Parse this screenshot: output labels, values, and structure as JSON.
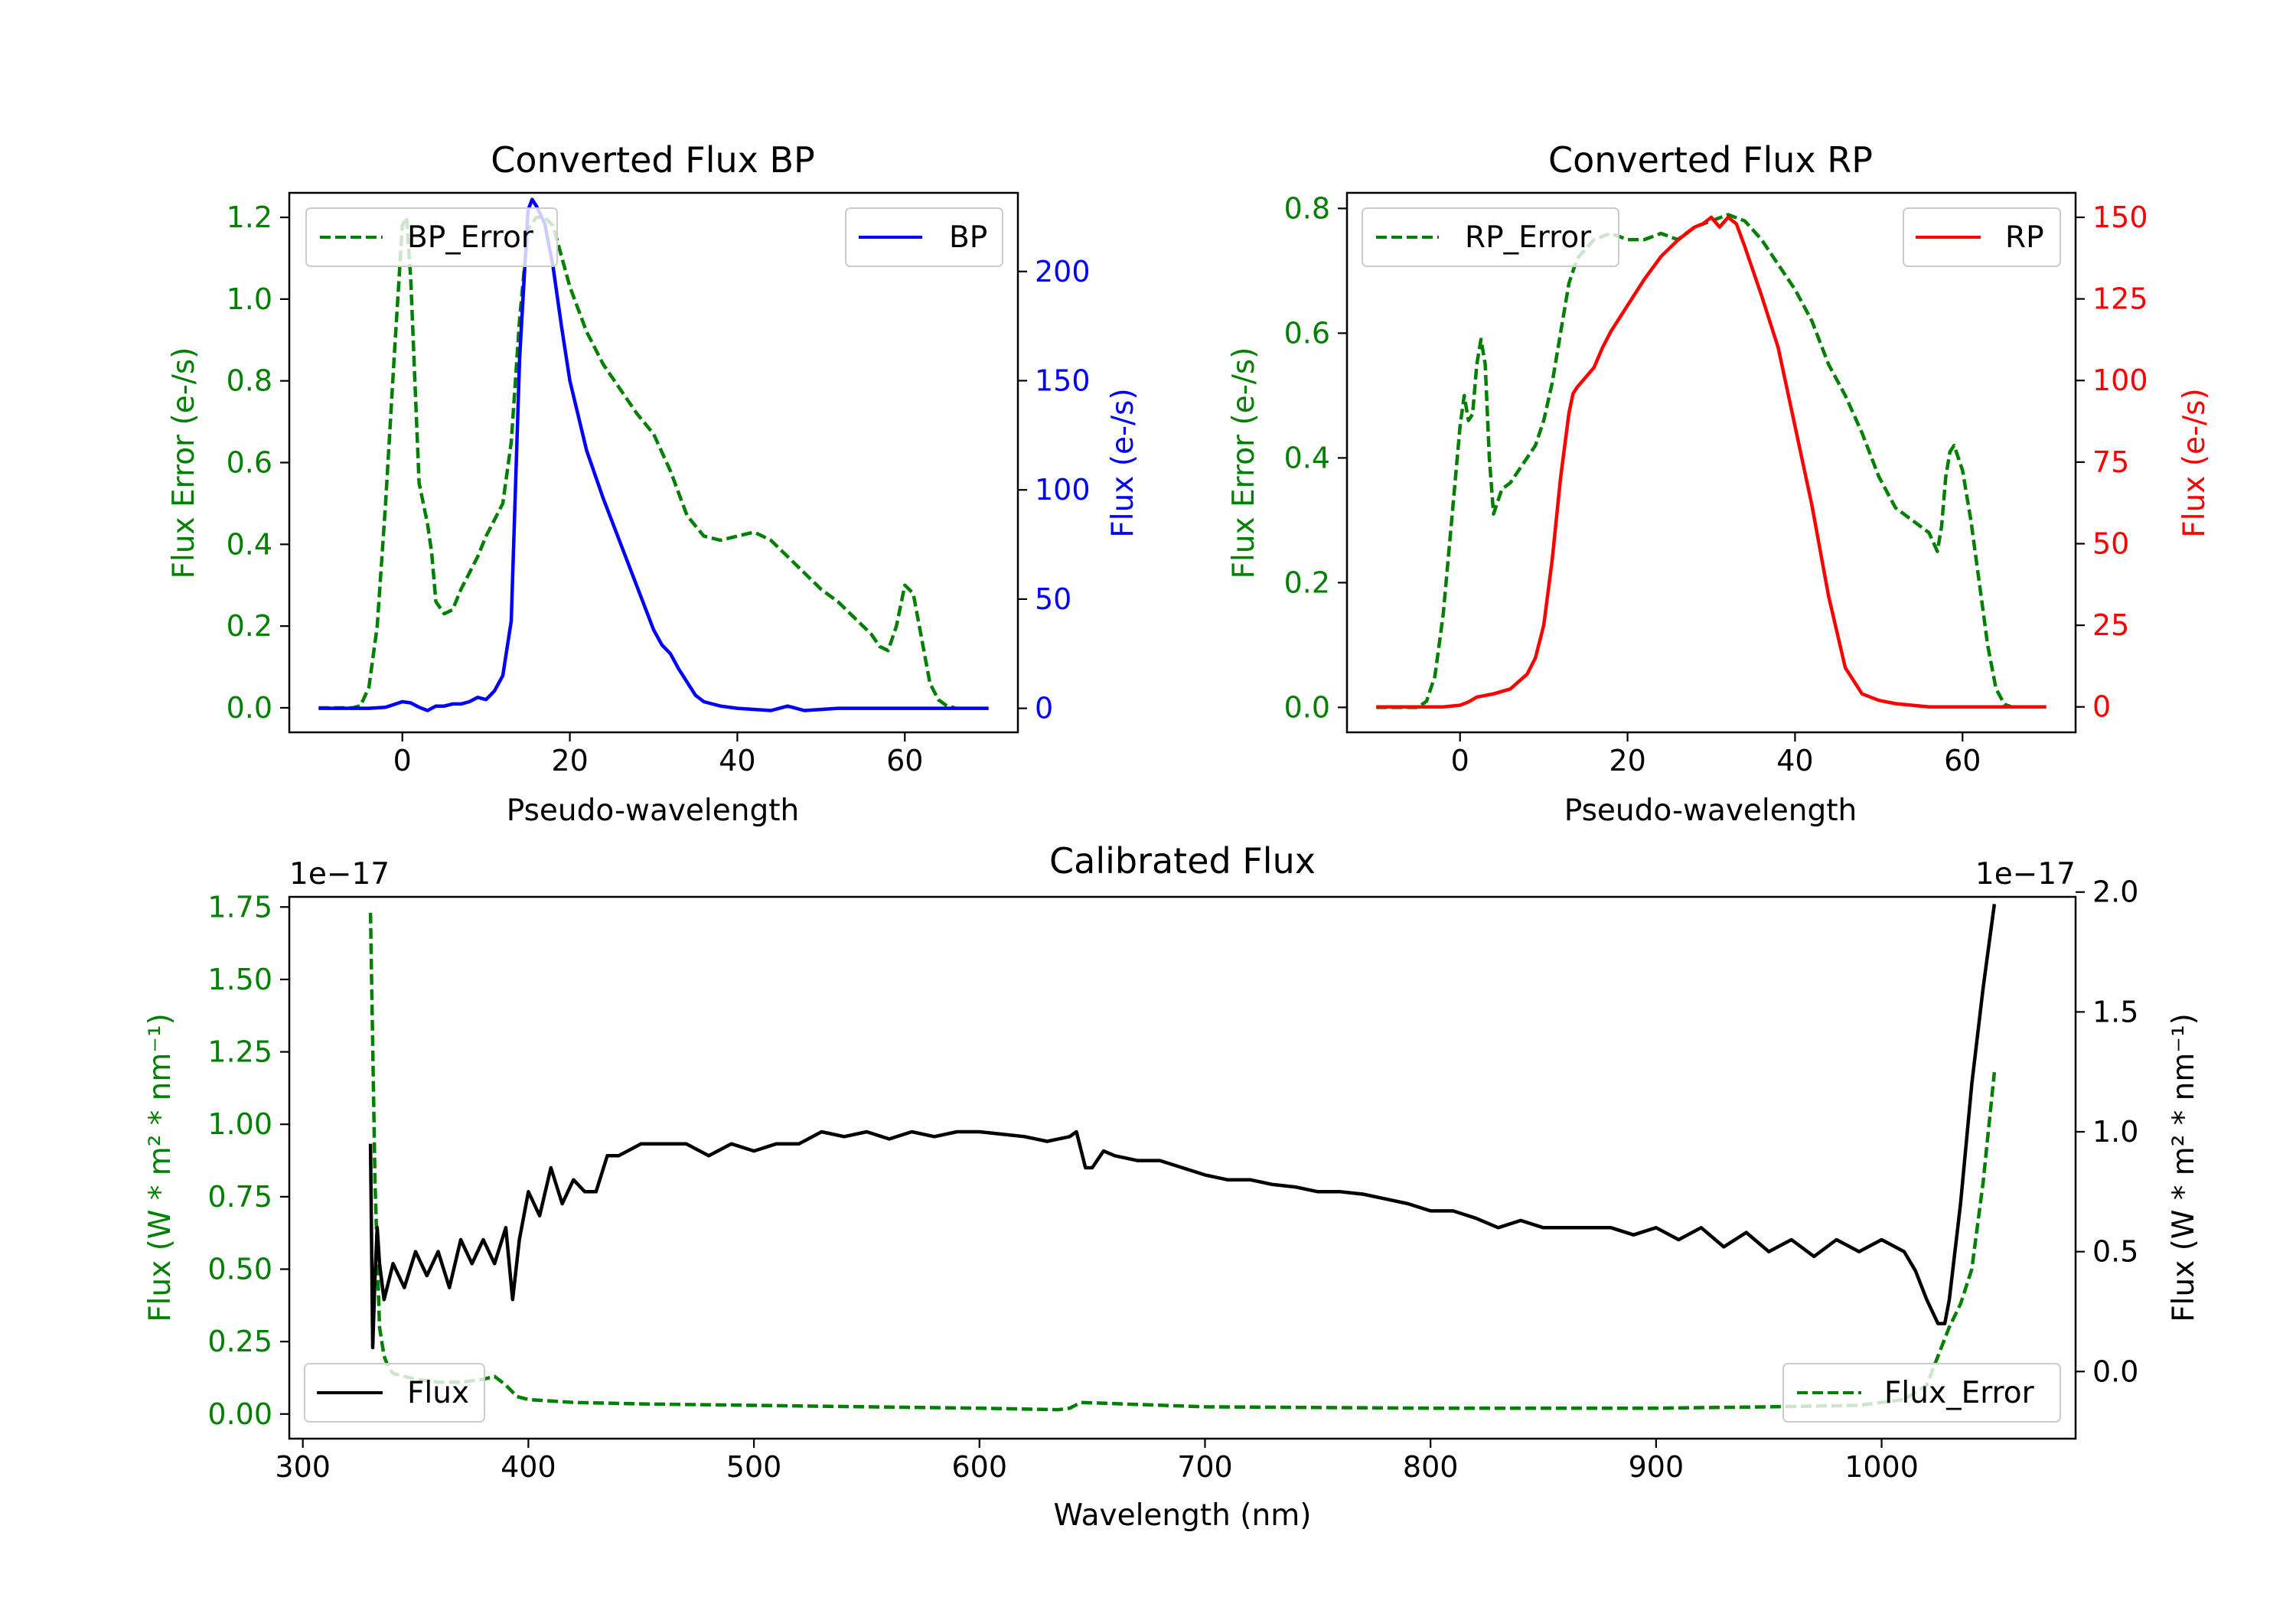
{
  "colors": {
    "bp": "#0000ff",
    "rp": "#ff0000",
    "error": "#008000",
    "flux": "#000000"
  },
  "chart_data": [
    {
      "id": "bp",
      "type": "line",
      "title": "Converted Flux BP",
      "xlabel": "Pseudo-wavelength",
      "ylabel_left": "Flux Error (e-/s)",
      "ylabel_right": "Flux (e-/s)",
      "xlim": [
        -13.5,
        73.5
      ],
      "ylim_left": [
        -0.06,
        1.26
      ],
      "ylim_right": [
        -11,
        236
      ],
      "xticks": [
        0,
        20,
        40,
        60
      ],
      "xtick_labels": [
        "0",
        "20",
        "40",
        "60"
      ],
      "yticks_left": [
        0,
        0.2,
        0.4,
        0.6,
        0.8,
        1.0,
        1.2
      ],
      "ytick_labels_left": [
        "0.0",
        "0.2",
        "0.4",
        "0.6",
        "0.8",
        "1.0",
        "1.2"
      ],
      "yticks_right": [
        0,
        50,
        100,
        150,
        200
      ],
      "ytick_labels_right": [
        "0",
        "50",
        "100",
        "150",
        "200"
      ],
      "legend_left": "BP_Error",
      "legend_right": "BP",
      "series": [
        {
          "name": "BP_Error",
          "axis": "left",
          "style": "dashed",
          "color_key": "error",
          "x": [
            -10,
            -6,
            -5,
            -4,
            -3,
            -2,
            -1,
            0,
            0.5,
            1,
            1.5,
            2,
            3,
            3.5,
            4,
            5,
            6,
            7,
            8,
            9,
            10,
            11,
            12,
            13,
            14,
            15,
            16,
            17,
            18,
            20,
            22,
            24,
            26,
            28,
            30,
            32,
            34,
            36,
            38,
            40,
            42,
            44,
            46,
            48,
            50,
            52,
            54,
            56,
            57,
            58,
            59,
            60,
            61,
            62,
            63,
            64,
            65,
            66
          ],
          "y": [
            0,
            0,
            0.005,
            0.05,
            0.2,
            0.5,
            0.85,
            1.18,
            1.2,
            1.05,
            0.8,
            0.55,
            0.45,
            0.38,
            0.26,
            0.23,
            0.24,
            0.29,
            0.33,
            0.37,
            0.42,
            0.46,
            0.5,
            0.65,
            0.95,
            1.17,
            1.2,
            1.2,
            1.18,
            1.03,
            0.92,
            0.84,
            0.78,
            0.72,
            0.67,
            0.58,
            0.47,
            0.42,
            0.41,
            0.42,
            0.43,
            0.41,
            0.37,
            0.33,
            0.29,
            0.26,
            0.22,
            0.18,
            0.15,
            0.14,
            0.2,
            0.3,
            0.28,
            0.17,
            0.06,
            0.02,
            0.005,
            0
          ]
        },
        {
          "name": "BP",
          "axis": "right",
          "style": "solid",
          "color_key": "bp",
          "x": [
            -10,
            -4,
            -2,
            0,
            1,
            2,
            3,
            4,
            5,
            6,
            7,
            8,
            9,
            10,
            11,
            12,
            13,
            14,
            15,
            15.5,
            16,
            17,
            18,
            19,
            20,
            22,
            24,
            26,
            28,
            30,
            31,
            32,
            33,
            34,
            35,
            36,
            38,
            40,
            44,
            46,
            48,
            52,
            56,
            60,
            65,
            70
          ],
          "y": [
            0,
            0,
            0.5,
            3,
            2.5,
            0.5,
            -1,
            1,
            1,
            2,
            2,
            3,
            5,
            4,
            8,
            15,
            40,
            160,
            228,
            233,
            230,
            222,
            202,
            175,
            150,
            118,
            96,
            76,
            56,
            36,
            29,
            25,
            18,
            12,
            6,
            3,
            1,
            0,
            -1,
            1,
            -1,
            0,
            0,
            0,
            0,
            0
          ]
        }
      ]
    },
    {
      "id": "rp",
      "type": "line",
      "title": "Converted Flux RP",
      "xlabel": "Pseudo-wavelength",
      "ylabel_left": "Flux Error (e-/s)",
      "ylabel_right": "Flux (e-/s)",
      "xlim": [
        -13.5,
        73.5
      ],
      "ylim_left": [
        -0.04,
        0.825
      ],
      "ylim_right": [
        -7.8,
        157.5
      ],
      "xticks": [
        0,
        20,
        40,
        60
      ],
      "xtick_labels": [
        "0",
        "20",
        "40",
        "60"
      ],
      "yticks_left": [
        0,
        0.2,
        0.4,
        0.6,
        0.8
      ],
      "ytick_labels_left": [
        "0.0",
        "0.2",
        "0.4",
        "0.6",
        "0.8"
      ],
      "yticks_right": [
        0,
        25,
        50,
        75,
        100,
        125,
        150
      ],
      "ytick_labels_right": [
        "0",
        "25",
        "50",
        "75",
        "100",
        "125",
        "150"
      ],
      "legend_left": "RP_Error",
      "legend_right": "RP",
      "series": [
        {
          "name": "RP_Error",
          "axis": "left",
          "style": "dashed",
          "color_key": "error",
          "x": [
            -10,
            -5,
            -4,
            -3,
            -2,
            -1,
            0,
            0.5,
            1,
            1.5,
            2,
            2.5,
            3,
            3.5,
            4,
            5,
            6,
            7,
            8,
            9,
            10,
            11,
            12,
            13,
            14,
            16,
            18,
            20,
            22,
            24,
            26,
            28,
            30,
            32,
            34,
            36,
            38,
            40,
            42,
            44,
            46,
            48,
            50,
            52,
            54,
            56,
            57,
            57.5,
            58,
            58.5,
            59,
            60,
            61,
            62,
            63,
            64,
            65,
            66
          ],
          "y": [
            0,
            0,
            0.01,
            0.05,
            0.15,
            0.3,
            0.45,
            0.5,
            0.46,
            0.47,
            0.55,
            0.59,
            0.55,
            0.4,
            0.31,
            0.35,
            0.36,
            0.38,
            0.4,
            0.42,
            0.46,
            0.52,
            0.6,
            0.68,
            0.72,
            0.75,
            0.76,
            0.75,
            0.75,
            0.76,
            0.75,
            0.77,
            0.78,
            0.79,
            0.78,
            0.75,
            0.71,
            0.67,
            0.62,
            0.55,
            0.5,
            0.44,
            0.37,
            0.32,
            0.3,
            0.28,
            0.25,
            0.29,
            0.37,
            0.41,
            0.42,
            0.38,
            0.3,
            0.2,
            0.1,
            0.03,
            0.005,
            0
          ]
        },
        {
          "name": "RP",
          "axis": "right",
          "style": "solid",
          "color_key": "rp",
          "x": [
            -10,
            -2,
            0,
            1,
            2,
            4,
            6,
            8,
            9,
            10,
            11,
            12,
            13,
            13.5,
            14,
            15,
            16,
            17,
            18,
            20,
            22,
            24,
            26,
            28,
            29,
            30,
            31,
            32,
            33,
            34,
            36,
            38,
            40,
            42,
            44,
            46,
            48,
            50,
            52,
            54,
            56,
            58,
            60,
            65,
            70
          ],
          "y": [
            0,
            0,
            0.5,
            1.5,
            3,
            4,
            5.5,
            10,
            15,
            25,
            45,
            70,
            90,
            96,
            98,
            101,
            104,
            110,
            115,
            123,
            131,
            138,
            143,
            147,
            148,
            150,
            147,
            150,
            148,
            141,
            126,
            110,
            86,
            62,
            34,
            12,
            4,
            2,
            1,
            0.5,
            0,
            0,
            0,
            0,
            0
          ]
        }
      ]
    },
    {
      "id": "calibrated",
      "type": "line",
      "title": "Calibrated Flux",
      "xlabel": "Wavelength (nm)",
      "ylabel_left": "Flux (W * m² * nm⁻¹)",
      "ylabel_right": "Flux (W * m² * nm⁻¹)",
      "offset_left": "1e−17",
      "offset_right": "1e−17",
      "xlim": [
        294,
        1086
      ],
      "ylim_left": [
        -0.085,
        1.785
      ],
      "ylim_right": [
        -0.28,
        1.98
      ],
      "xticks": [
        300,
        400,
        500,
        600,
        700,
        800,
        900,
        1000
      ],
      "xtick_labels": [
        "300",
        "400",
        "500",
        "600",
        "700",
        "800",
        "900",
        "1000"
      ],
      "yticks_left": [
        0,
        0.25,
        0.5,
        0.75,
        1.0,
        1.25,
        1.5,
        1.75
      ],
      "ytick_labels_left": [
        "0.00",
        "0.25",
        "0.50",
        "0.75",
        "1.00",
        "1.25",
        "1.50",
        "1.75"
      ],
      "yticks_right": [
        0,
        0.5,
        1.0,
        1.5,
        2.0
      ],
      "ytick_labels_right": [
        "0.0",
        "0.5",
        "1.0",
        "1.5",
        "2.0"
      ],
      "legend_left": "Flux",
      "legend_right": "Flux_Error",
      "series": [
        {
          "name": "Flux_Error",
          "axis": "left",
          "style": "dashed",
          "color_key": "error",
          "x": [
            330,
            332,
            334,
            336,
            338,
            340,
            345,
            350,
            360,
            370,
            380,
            385,
            390,
            395,
            400,
            420,
            450,
            500,
            550,
            600,
            635,
            640,
            645,
            700,
            800,
            900,
            950,
            990,
            1010,
            1020,
            1030,
            1035,
            1040,
            1045,
            1050
          ],
          "y": [
            1.73,
            0.8,
            0.3,
            0.2,
            0.16,
            0.14,
            0.13,
            0.12,
            0.11,
            0.11,
            0.12,
            0.13,
            0.1,
            0.06,
            0.05,
            0.04,
            0.035,
            0.03,
            0.025,
            0.02,
            0.015,
            0.02,
            0.04,
            0.025,
            0.02,
            0.02,
            0.025,
            0.03,
            0.05,
            0.1,
            0.3,
            0.38,
            0.5,
            0.8,
            1.18
          ]
        },
        {
          "name": "Flux",
          "axis": "right",
          "style": "solid",
          "color_key": "flux",
          "x": [
            330,
            331,
            332,
            333,
            334,
            336,
            340,
            345,
            350,
            355,
            360,
            365,
            370,
            375,
            380,
            385,
            390,
            393,
            396,
            400,
            405,
            410,
            415,
            420,
            425,
            430,
            435,
            440,
            450,
            460,
            470,
            480,
            490,
            500,
            510,
            520,
            530,
            540,
            550,
            560,
            570,
            580,
            590,
            600,
            610,
            620,
            630,
            640,
            643,
            647,
            650,
            655,
            660,
            670,
            680,
            690,
            700,
            710,
            720,
            730,
            740,
            750,
            760,
            770,
            780,
            790,
            800,
            810,
            820,
            830,
            840,
            850,
            860,
            870,
            880,
            890,
            900,
            910,
            920,
            930,
            940,
            950,
            960,
            970,
            980,
            990,
            1000,
            1010,
            1015,
            1020,
            1025,
            1028,
            1030,
            1035,
            1040,
            1045,
            1050
          ],
          "y": [
            0.95,
            0.1,
            0.4,
            0.6,
            0.45,
            0.3,
            0.45,
            0.35,
            0.5,
            0.4,
            0.5,
            0.35,
            0.55,
            0.45,
            0.55,
            0.45,
            0.6,
            0.3,
            0.55,
            0.75,
            0.65,
            0.85,
            0.7,
            0.8,
            0.75,
            0.75,
            0.9,
            0.9,
            0.95,
            0.95,
            0.95,
            0.9,
            0.95,
            0.92,
            0.95,
            0.95,
            1.0,
            0.98,
            1.0,
            0.97,
            1.0,
            0.98,
            1.0,
            1.0,
            0.99,
            0.98,
            0.96,
            0.98,
            1.0,
            0.85,
            0.85,
            0.92,
            0.9,
            0.88,
            0.88,
            0.85,
            0.82,
            0.8,
            0.8,
            0.78,
            0.77,
            0.75,
            0.75,
            0.74,
            0.72,
            0.7,
            0.67,
            0.67,
            0.64,
            0.6,
            0.63,
            0.6,
            0.6,
            0.6,
            0.6,
            0.57,
            0.6,
            0.55,
            0.6,
            0.52,
            0.58,
            0.5,
            0.55,
            0.48,
            0.55,
            0.5,
            0.55,
            0.5,
            0.42,
            0.3,
            0.2,
            0.2,
            0.3,
            0.7,
            1.2,
            1.6,
            1.95
          ]
        }
      ]
    }
  ]
}
